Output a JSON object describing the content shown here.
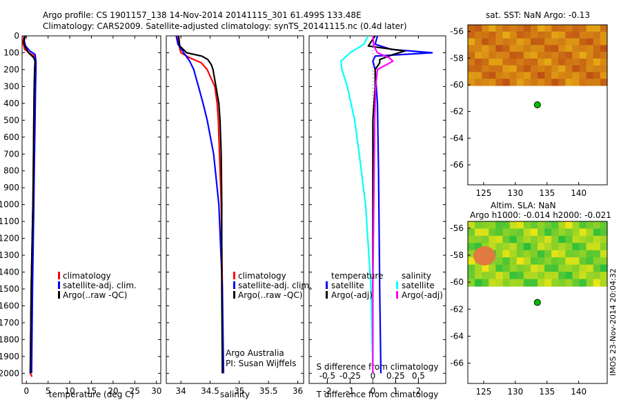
{
  "header": {
    "line1": "Argo profile: CS 1901157_138 14-Nov-2014 20141115_301 61.499S 133.48E",
    "line2": "Climatology: CARS2009. Satellite-adjusted climatology: synTS_20141115.nc (0.4d later)"
  },
  "side_caption": "IMOS 23-Nov-2014 20:04:32",
  "colors": {
    "climatology": "#ff0000",
    "satellite": "#0000ff",
    "argo": "#000000",
    "sal_sat": "#00ffff",
    "sal_argo": "#ff00ff",
    "marker": "#00c000"
  },
  "chart_data": [
    {
      "type": "line",
      "title": "",
      "xlabel": "temperature (deg C)",
      "ylabel": "",
      "xlim": [
        -1,
        31
      ],
      "ylim": [
        2060,
        0
      ],
      "xticks": [
        "0",
        "5",
        "10",
        "15",
        "20",
        "25",
        "30"
      ],
      "yticks": [
        "0",
        "100",
        "200",
        "300",
        "400",
        "500",
        "600",
        "700",
        "800",
        "900",
        "1000",
        "1100",
        "1200",
        "1300",
        "1400",
        "1500",
        "1600",
        "1700",
        "1800",
        "1900",
        "2000"
      ],
      "legend": [
        "climatology",
        "satellite-adj. clim.",
        "Argo(..raw -QC)"
      ],
      "series": [
        {
          "name": "climatology",
          "depth": [
            0,
            40,
            80,
            100,
            120,
            150,
            200,
            300,
            500,
            800,
            1000,
            1500,
            2000,
            2020
          ],
          "values": [
            -0.6,
            -0.8,
            -0.4,
            0.6,
            1.8,
            2.0,
            1.9,
            1.8,
            1.7,
            1.6,
            1.5,
            1.1,
            0.9,
            1.3
          ]
        },
        {
          "name": "satellite-adj. clim.",
          "depth": [
            0,
            30,
            60,
            90,
            110,
            150,
            200,
            300,
            500,
            800,
            1000,
            1500,
            2000
          ],
          "values": [
            -0.3,
            -0.5,
            -0.2,
            0.8,
            2.0,
            2.2,
            2.2,
            2.1,
            2.0,
            1.8,
            1.7,
            1.4,
            1.2
          ]
        },
        {
          "name": "Argo(..raw -QC)",
          "depth": [
            0,
            20,
            40,
            70,
            100,
            130,
            150,
            200,
            300,
            500,
            800,
            1000,
            1500,
            2000
          ],
          "values": [
            -0.2,
            -0.5,
            -0.6,
            -0.2,
            0.5,
            1.7,
            2.0,
            1.9,
            1.8,
            1.7,
            1.6,
            1.5,
            1.1,
            0.9
          ]
        }
      ]
    },
    {
      "type": "line",
      "xlabel": "salinity",
      "xlim": [
        33.75,
        36.1
      ],
      "ylim": [
        2060,
        0
      ],
      "xticks": [
        "34",
        "34.5",
        "35",
        "35.5",
        "36"
      ],
      "legend": [
        "climatology",
        "satellite-adj. clim.",
        "Argo(..raw -QC)"
      ],
      "annotations": [
        "Argo Australia",
        "PI: Susan Wijffels"
      ],
      "series": [
        {
          "name": "climatology",
          "depth": [
            0,
            60,
            100,
            130,
            160,
            200,
            300,
            400,
            500,
            700,
            1000,
            1500,
            2000
          ],
          "values": [
            33.95,
            33.97,
            34.0,
            34.15,
            34.35,
            34.45,
            34.58,
            34.62,
            34.64,
            34.66,
            34.69,
            34.71,
            34.71
          ]
        },
        {
          "name": "satellite-adj. clim.",
          "depth": [
            0,
            50,
            100,
            150,
            200,
            300,
            400,
            500,
            700,
            1000,
            1500,
            2000
          ],
          "values": [
            33.92,
            33.95,
            34.05,
            34.15,
            34.22,
            34.3,
            34.38,
            34.45,
            34.56,
            34.65,
            34.71,
            34.73
          ]
        },
        {
          "name": "Argo(..raw -QC)",
          "depth": [
            0,
            60,
            100,
            120,
            140,
            170,
            200,
            300,
            400,
            500,
            700,
            1000,
            1500,
            2000
          ],
          "values": [
            33.96,
            33.98,
            34.1,
            34.36,
            34.46,
            34.52,
            34.55,
            34.6,
            34.65,
            34.67,
            34.69,
            34.7,
            34.7,
            34.71
          ]
        }
      ]
    },
    {
      "type": "line",
      "xlabel": "T difference from climatology",
      "xlabel_top": "S difference from climatology",
      "xlim": [
        -2.8,
        3.2
      ],
      "ylim": [
        2060,
        0
      ],
      "xticks": [
        "-2",
        "-1",
        "0",
        "1",
        "2"
      ],
      "xticks_top": [
        "-0.5",
        "-0.25",
        "0",
        "0.25",
        "0.5"
      ],
      "legend": [
        "temperature",
        "satellite",
        "Argo(-adj)",
        "salinity",
        "satellite",
        "Argo(-adj)"
      ],
      "series": [
        {
          "name": "temperature satellite",
          "depth": [
            0,
            50,
            80,
            100,
            120,
            150,
            200,
            400,
            800,
            1500,
            2000
          ],
          "values": [
            0.2,
            0.1,
            0.8,
            2.6,
            0.1,
            0.0,
            0.1,
            0.2,
            0.25,
            0.3,
            0.35
          ]
        },
        {
          "name": "temperature Argo(-adj)",
          "depth": [
            0,
            60,
            90,
            110,
            140,
            160,
            200,
            300,
            500,
            800,
            1000,
            1500,
            2000
          ],
          "values": [
            0.1,
            -0.2,
            1.4,
            0.9,
            0.3,
            0.3,
            0.1,
            0.1,
            0.0,
            0.0,
            0.0,
            0.0,
            0.0
          ]
        },
        {
          "name": "salinity satellite",
          "depth": [
            0,
            50,
            100,
            150,
            200,
            300,
            500,
            700,
            1000,
            1500,
            2000
          ],
          "values": [
            -0.05,
            -0.1,
            -0.25,
            -0.35,
            -0.34,
            -0.28,
            -0.2,
            -0.15,
            -0.08,
            -0.02,
            0.0
          ]
        },
        {
          "name": "salinity Argo(-adj)",
          "depth": [
            0,
            60,
            100,
            130,
            150,
            200,
            300,
            500,
            1000,
            1500,
            2000
          ],
          "values": [
            0.0,
            0.01,
            0.05,
            0.18,
            0.22,
            0.05,
            0.03,
            0.02,
            0.01,
            0.0,
            0.0
          ]
        }
      ]
    },
    {
      "type": "heatmap",
      "title": "sat. SST: NaN Argo: -0.13",
      "xlim": [
        122.5,
        144.5
      ],
      "ylim": [
        -67.5,
        -55.5
      ],
      "xticks": [
        "125",
        "130",
        "135",
        "140"
      ],
      "yticks": [
        "-56",
        "-58",
        "-60",
        "-62",
        "-64",
        "-66"
      ],
      "marker": {
        "lon": 133.48,
        "lat": -61.5
      }
    },
    {
      "type": "heatmap",
      "title": "Altim. SLA: NaN",
      "subtitle": "Argo h1000: -0.014 h2000: -0.021",
      "xlim": [
        122.5,
        144.5
      ],
      "ylim": [
        -67.5,
        -55.5
      ],
      "xticks": [
        "125",
        "130",
        "135",
        "140"
      ],
      "yticks": [
        "-56",
        "-58",
        "-60",
        "-62",
        "-64",
        "-66"
      ],
      "marker": {
        "lon": 133.48,
        "lat": -61.5
      }
    }
  ]
}
